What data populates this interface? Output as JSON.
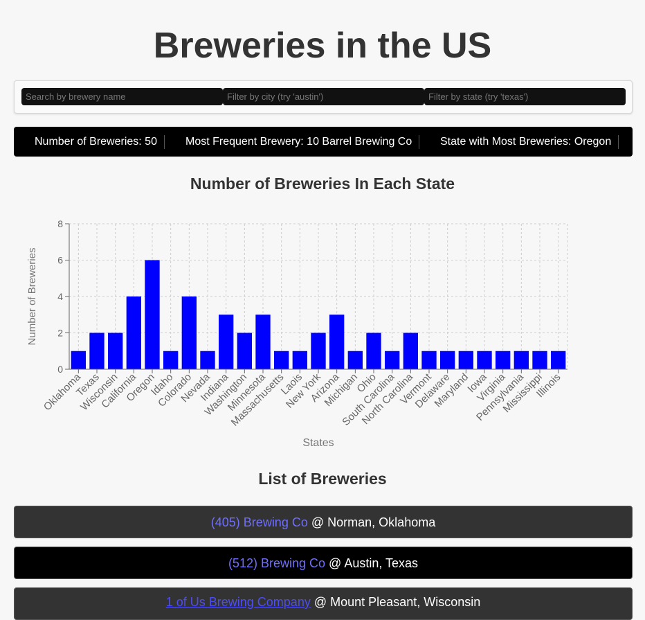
{
  "page": {
    "title": "Breweries in the US"
  },
  "search": {
    "name_placeholder": "Search by brewery name",
    "city_placeholder": "Filter by city (try 'austin')",
    "state_placeholder": "Filter by state (try 'texas')"
  },
  "stats": {
    "count_text": "Number of Breweries: 50",
    "frequent_text": "Most Frequent Brewery: 10 Barrel Brewing Co",
    "state_text": "State with Most Breweries: Oregon"
  },
  "chart_section": {
    "title": "Number of Breweries In Each State"
  },
  "chart_data": {
    "type": "bar",
    "title": "Number of Breweries In Each State",
    "xlabel": "States",
    "ylabel": "Number of Breweries",
    "ylim": [
      0,
      8
    ],
    "yticks": [
      0,
      2,
      4,
      6,
      8
    ],
    "grid": true,
    "bar_color": "#0000ff",
    "categories": [
      "Oklahoma",
      "Texas",
      "Wisconsin",
      "California",
      "Oregon",
      "Idaho",
      "Colorado",
      "Nevada",
      "Indiana",
      "Washington",
      "Minnesota",
      "Massachusetts",
      "Laois",
      "New York",
      "Arizona",
      "Michigan",
      "Ohio",
      "South Carolina",
      "North Carolina",
      "Vermont",
      "Delaware",
      "Maryland",
      "Iowa",
      "Virginia",
      "Pennsylvania",
      "Mississippi",
      "Illinois"
    ],
    "values": [
      1,
      2,
      2,
      4,
      6,
      1,
      4,
      1,
      3,
      2,
      3,
      1,
      1,
      2,
      3,
      1,
      2,
      1,
      2,
      1,
      1,
      1,
      1,
      1,
      1,
      1,
      1
    ]
  },
  "list_section": {
    "title": "List of Breweries"
  },
  "breweries": [
    {
      "name": "(405) Brewing Co",
      "separator": "@",
      "location": "Norman, Oklahoma"
    },
    {
      "name": "(512) Brewing Co",
      "separator": "@",
      "location": "Austin, Texas"
    },
    {
      "name": "1 of Us Brewing Company",
      "separator": "@",
      "location": "Mount Pleasant, Wisconsin"
    }
  ],
  "colors": {
    "background": "#f7f7f7",
    "row_dark": "#333333",
    "row_black": "#000000",
    "link": "#6f6ffb",
    "bar": "#0000ff"
  }
}
